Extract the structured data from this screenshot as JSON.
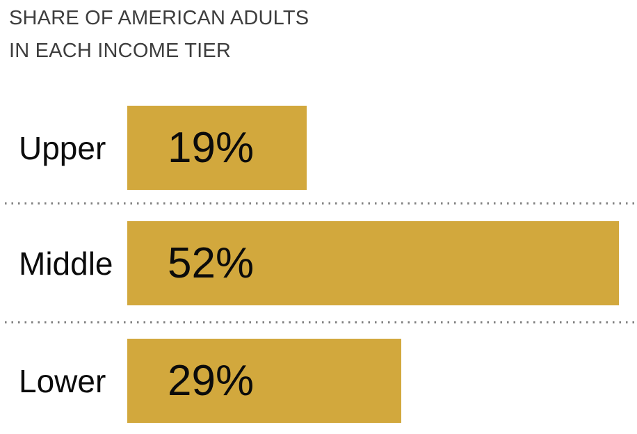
{
  "chart_data": {
    "type": "bar",
    "orientation": "horizontal",
    "title": "SHARE OF AMERICAN ADULTS IN EACH INCOME TIER",
    "title_lines": [
      "SHARE OF AMERICAN ADULTS",
      "IN EACH INCOME TIER"
    ],
    "categories": [
      "Upper",
      "Middle",
      "Lower"
    ],
    "values": [
      19,
      52,
      29
    ],
    "value_labels": [
      "19%",
      "52%",
      "29%"
    ],
    "xlabel": "",
    "ylabel": "",
    "xlim": [
      0,
      52
    ],
    "grid": false,
    "legend_position": "none",
    "separator_style": "dotted",
    "colors": {
      "bar_fill": "#D2A83D",
      "title_text": "#3d3d3d",
      "label_text": "#0b0b0b",
      "value_text": "#0b0b0b",
      "separator_dot": "#7f7f7f",
      "background": "#ffffff"
    }
  }
}
